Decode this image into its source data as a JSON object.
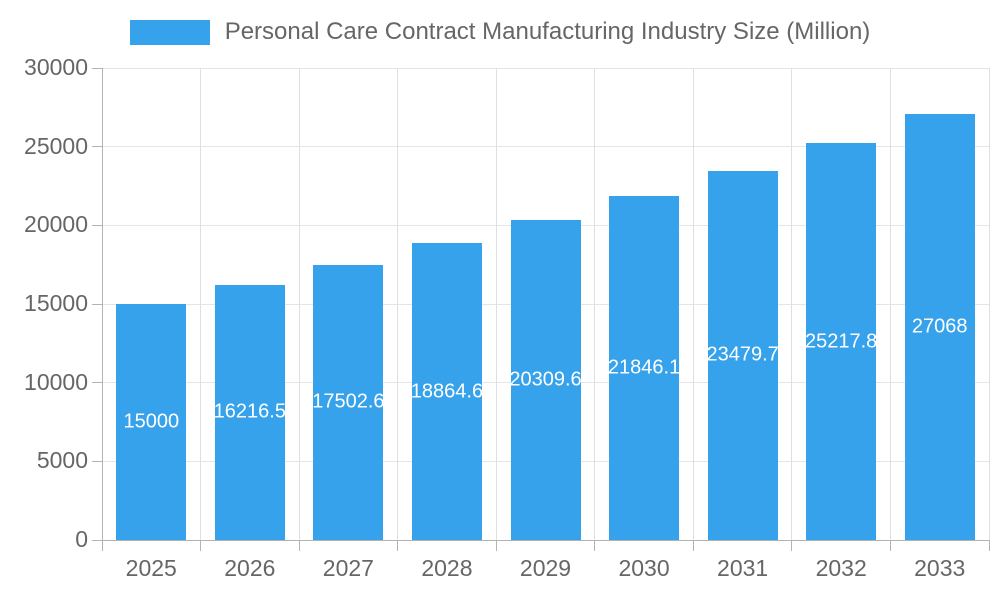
{
  "legend": {
    "label": "Personal Care Contract Manufacturing Industry Size (Million)",
    "swatch_color": "#36A2EB"
  },
  "chart_data": {
    "type": "bar",
    "title": "Personal Care Contract Manufacturing Industry Size (Million)",
    "categories": [
      "2025",
      "2026",
      "2027",
      "2028",
      "2029",
      "2030",
      "2031",
      "2032",
      "2033"
    ],
    "values": [
      15000,
      16216.5,
      17502.6,
      18864.6,
      20309.6,
      21846.1,
      23479.7,
      25217.8,
      27068
    ],
    "bar_labels": [
      "15000",
      "16216.5",
      "17502.6",
      "18864.6",
      "20309.6",
      "21846.1",
      "23479.7",
      "25217.8",
      "27068"
    ],
    "y_ticks": [
      0,
      5000,
      10000,
      15000,
      20000,
      25000,
      30000
    ],
    "ylim": [
      0,
      30000
    ],
    "xlabel": "",
    "ylabel": "",
    "legend_position": "top",
    "grid": true,
    "bar_color": "#36A2EB",
    "bar_label_color": "#ffffff",
    "axis_text_color": "#666666"
  }
}
